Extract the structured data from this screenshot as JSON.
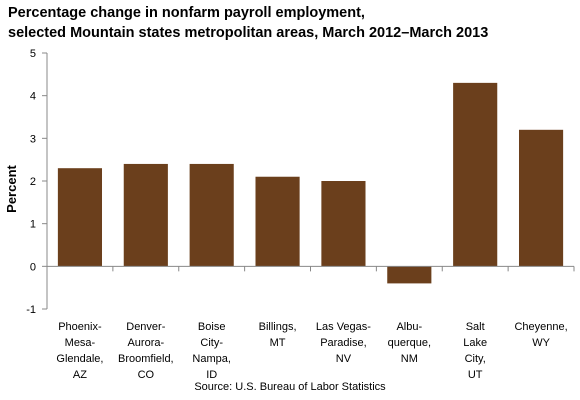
{
  "chart_data": {
    "type": "bar",
    "title_lines": [
      "Percentage change in nonfarm payroll employment,",
      "selected Mountain states metropolitan areas, March 2012–March 2013"
    ],
    "ylabel": "Percent",
    "xlabel": "",
    "ylim": [
      -1,
      5
    ],
    "yticks": [
      "-1",
      "0",
      "1",
      "2",
      "3",
      "4",
      "5"
    ],
    "grid": false,
    "legend": "none",
    "bar_color": "#6b3f1c",
    "categories": [
      [
        "Phoenix-",
        "Mesa-",
        "Glendale,",
        "AZ"
      ],
      [
        "Denver-",
        "Aurora-",
        "Broomfield,",
        "CO"
      ],
      [
        "Boise",
        "City-",
        "Nampa,",
        "ID"
      ],
      [
        "Billings,",
        "MT"
      ],
      [
        "Las Vegas-",
        "Paradise,",
        "NV"
      ],
      [
        "Albu-",
        "querque,",
        "NM"
      ],
      [
        "Salt",
        "Lake",
        "City,",
        "UT"
      ],
      [
        "Cheyenne,",
        "WY"
      ]
    ],
    "values": [
      2.3,
      2.4,
      2.4,
      2.1,
      2.0,
      -0.4,
      4.3,
      3.2
    ],
    "source": "Source: U.S. Bureau of Labor Statistics"
  }
}
